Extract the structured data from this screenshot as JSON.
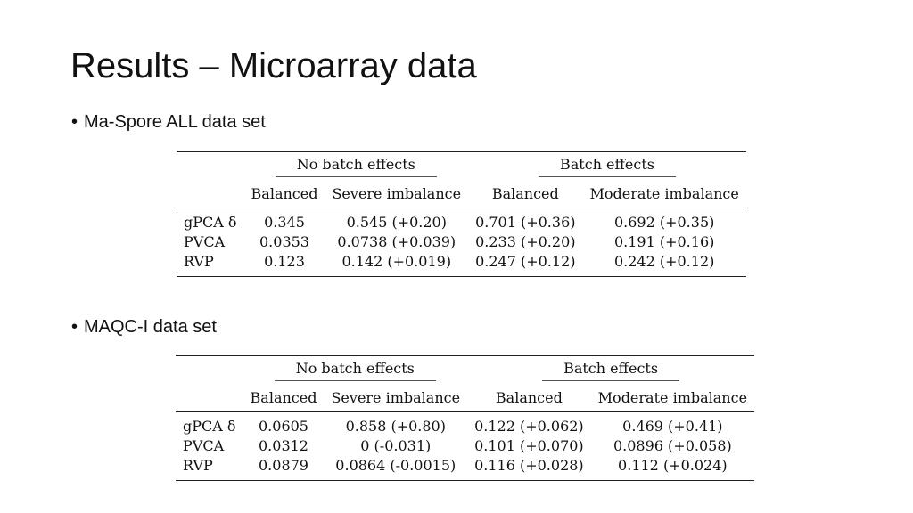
{
  "slide": {
    "title": "Results – Microarray data",
    "bullets": [
      "Ma-Spore ALL data set",
      "MAQC-I data set"
    ]
  },
  "tables": [
    {
      "group_headers": [
        "No batch effects",
        "Batch effects"
      ],
      "columns": [
        "Balanced",
        "Severe imbalance",
        "Balanced",
        "Moderate imbalance"
      ],
      "rows": [
        {
          "label": "gPCA δ",
          "cells": [
            "0.345",
            "0.545 (+0.20)",
            "0.701 (+0.36)",
            "0.692 (+0.35)"
          ]
        },
        {
          "label": "PVCA",
          "cells": [
            "0.0353",
            "0.0738 (+0.039)",
            "0.233 (+0.20)",
            "0.191 (+0.16)"
          ]
        },
        {
          "label": "RVP",
          "cells": [
            "0.123",
            "0.142 (+0.019)",
            "0.247 (+0.12)",
            "0.242 (+0.12)"
          ]
        }
      ]
    },
    {
      "group_headers": [
        "No batch effects",
        "Batch effects"
      ],
      "columns": [
        "Balanced",
        "Severe imbalance",
        "Balanced",
        "Moderate imbalance"
      ],
      "rows": [
        {
          "label": "gPCA δ",
          "cells": [
            "0.0605",
            "0.858 (+0.80)",
            "0.122 (+0.062)",
            "0.469 (+0.41)"
          ]
        },
        {
          "label": "PVCA",
          "cells": [
            "0.0312",
            "0 (-0.031)",
            "0.101 (+0.070)",
            "0.0896 (+0.058)"
          ]
        },
        {
          "label": "RVP",
          "cells": [
            "0.0879",
            "0.0864 (-0.0015)",
            "0.116 (+0.028)",
            "0.112 (+0.024)"
          ]
        }
      ]
    }
  ]
}
